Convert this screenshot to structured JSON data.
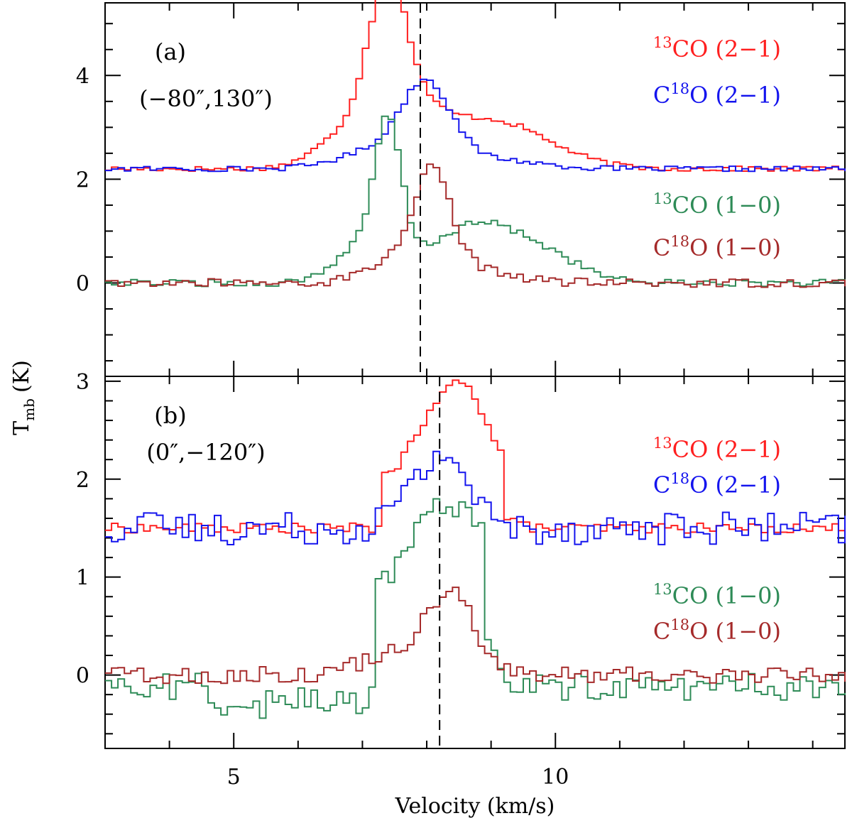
{
  "figure": {
    "ylabel_main": "T",
    "ylabel_sub": "mb",
    "ylabel_unit": "(K)",
    "xlabel": "Velocity (km/s)"
  },
  "chart_data": [
    {
      "type": "line",
      "step": true,
      "panel_label": "(a)",
      "position_label": "(−80″,130″)",
      "xlim": [
        3,
        14.5
      ],
      "ylim": [
        -1.8,
        5.4
      ],
      "x_ticks": [
        5,
        10
      ],
      "y_ticks": [
        0,
        2,
        4
      ],
      "vline_x": 7.9,
      "series": [
        {
          "name": "13CO (2−1)",
          "label_sup": "13",
          "label_main": "CO (2−1)",
          "color": "#ff1f1f",
          "baseline": 2.2,
          "noise": 0.03,
          "peaks": [
            [
              7.35,
              2.72,
              0.3
            ],
            [
              6.9,
              0.8,
              0.55
            ],
            [
              8.9,
              0.95,
              0.9
            ],
            [
              7.9,
              0.5,
              0.4
            ]
          ]
        },
        {
          "name": "C18O (2−1)",
          "label_sup": "18",
          "label_main": "O (2−1)",
          "label_prefix": "C",
          "color": "#1414ee",
          "baseline": 2.2,
          "noise": 0.03,
          "peaks": [
            [
              7.95,
              1.45,
              0.38
            ],
            [
              7.2,
              0.35,
              0.6
            ],
            [
              8.8,
              0.2,
              0.8
            ]
          ]
        },
        {
          "name": "13CO (1−0)",
          "label_sup": "13",
          "label_main": "CO (1−0)",
          "label_prefix": "",
          "color": "#2e8b57",
          "baseline": 0.0,
          "noise": 0.04,
          "peaks": [
            [
              7.35,
              2.5,
              0.2
            ],
            [
              7.0,
              0.7,
              0.45
            ],
            [
              8.8,
              1.15,
              0.8
            ],
            [
              10.0,
              0.2,
              0.5
            ]
          ]
        },
        {
          "name": "C18O (1−0)",
          "label_sup": "18",
          "label_main": "O (1−0)",
          "label_prefix": "C",
          "color": "#a52a2a",
          "baseline": 0.0,
          "noise": 0.05,
          "peaks": [
            [
              8.05,
              1.75,
              0.28
            ],
            [
              7.6,
              0.5,
              0.5
            ],
            [
              8.7,
              0.25,
              0.6
            ]
          ]
        }
      ]
    },
    {
      "type": "line",
      "step": true,
      "panel_label": "(b)",
      "position_label": "(0″,−120″)",
      "xlim": [
        3,
        14.5
      ],
      "ylim": [
        -0.75,
        3.05
      ],
      "x_ticks": [
        5,
        10
      ],
      "y_ticks": [
        0,
        1,
        2,
        3
      ],
      "vline_x": 8.2,
      "series": [
        {
          "name": "13CO (2−1)",
          "label_sup": "13",
          "label_main": "CO (2−1)",
          "label_prefix": "",
          "color": "#ff1f1f",
          "baseline": 1.5,
          "noise": 0.03,
          "box": [
            7.2,
            9.1,
            0.55
          ],
          "peaks": [
            [
              8.5,
              0.95,
              0.35
            ],
            [
              7.9,
              0.3,
              0.25
            ]
          ]
        },
        {
          "name": "C18O (2−1)",
          "label_sup": "18",
          "label_main": "O (2−1)",
          "label_prefix": "C",
          "color": "#1414ee",
          "baseline": 1.5,
          "noise": 0.1,
          "peaks": [
            [
              8.25,
              0.75,
              0.35
            ],
            [
              7.6,
              0.2,
              0.3
            ]
          ]
        },
        {
          "name": "13CO (1−0)",
          "label_sup": "13",
          "label_main": "CO (1−0)",
          "label_prefix": "",
          "color": "#2e8b57",
          "baseline": -0.12,
          "noise": 0.08,
          "box": [
            7.1,
            8.8,
            1.05
          ],
          "peaks": [
            [
              8.0,
              0.6,
              0.3
            ],
            [
              8.6,
              0.7,
              0.3
            ]
          ]
        },
        {
          "name": "C18O (1−0)",
          "label_sup": "18",
          "label_main": "O (1−0)",
          "label_prefix": "C",
          "color": "#a52a2a",
          "baseline": 0.0,
          "noise": 0.05,
          "peaks": [
            [
              8.35,
              0.78,
              0.35
            ],
            [
              7.6,
              0.25,
              0.6
            ]
          ]
        }
      ]
    }
  ]
}
